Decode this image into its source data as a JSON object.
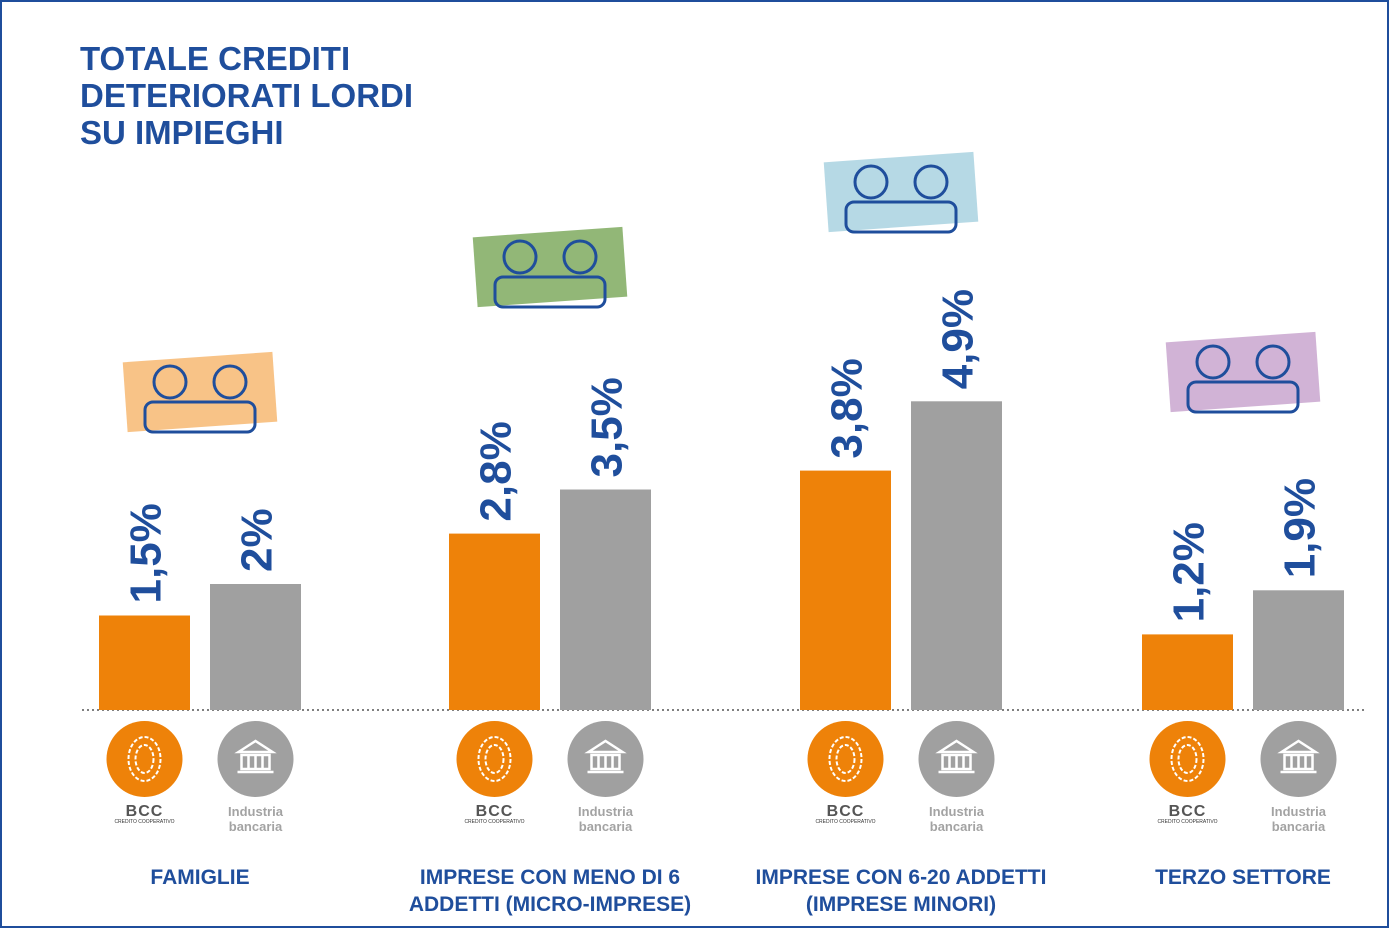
{
  "chart_data": {
    "type": "bar",
    "title": "TOTALE CREDITI DETERIORATI LORDI SU IMPIEGHI",
    "categories": [
      "FAMIGLIE",
      "IMPRESE CON MENO DI 6 ADDETTI (MICRO-IMPRESE)",
      "IMPRESE CON 6-20 ADDETTI (IMPRESE MINORI)",
      "TERZO SETTORE"
    ],
    "series": [
      {
        "name": "BCC",
        "subtitle": "CREDITO COOPERATIVO",
        "color": "#ee8209",
        "values": [
          1.5,
          2.8,
          3.8,
          1.2
        ],
        "value_labels": [
          "1,5%",
          "2,8%",
          "3,8%",
          "1,2%"
        ]
      },
      {
        "name": "Industria bancaria",
        "color": "#a0a0a0",
        "values": [
          2,
          3.5,
          4.9,
          1.9
        ],
        "value_labels": [
          "2%",
          "3,5%",
          "4,9%",
          "1,9%"
        ]
      }
    ]
  }
}
